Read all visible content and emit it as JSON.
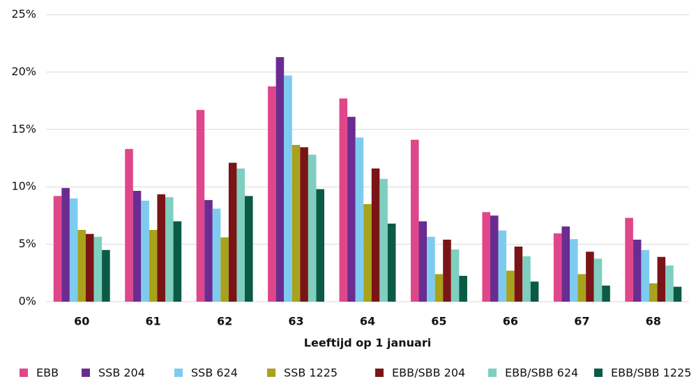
{
  "chart_data": {
    "type": "bar",
    "x_label": "Leeftijd op 1 januari",
    "categories": [
      "60",
      "61",
      "62",
      "63",
      "64",
      "65",
      "66",
      "67",
      "68"
    ],
    "series": [
      {
        "name": "EBB",
        "color": "#e0468a",
        "values": [
          9.2,
          13.3,
          16.7,
          18.75,
          17.7,
          14.1,
          7.8,
          5.95,
          7.3
        ]
      },
      {
        "name": "SSB 204",
        "color": "#6a2c91",
        "values": [
          9.9,
          9.65,
          8.85,
          21.3,
          16.1,
          7.0,
          7.5,
          6.55,
          5.4
        ]
      },
      {
        "name": "SSB 624",
        "color": "#7ecbf0",
        "values": [
          9.0,
          8.8,
          8.1,
          19.7,
          14.3,
          5.65,
          6.2,
          5.45,
          4.5
        ]
      },
      {
        "name": "SSB 1225",
        "color": "#a8a21c",
        "values": [
          6.25,
          6.25,
          5.6,
          13.65,
          8.5,
          2.4,
          2.7,
          2.4,
          1.6
        ]
      },
      {
        "name": "EBB/SBB 204",
        "color": "#7b1416",
        "values": [
          5.9,
          9.35,
          12.1,
          13.45,
          11.6,
          5.4,
          4.8,
          4.35,
          3.9
        ]
      },
      {
        "name": "EBB/SBB 624",
        "color": "#7fcfc0",
        "values": [
          5.65,
          9.1,
          11.6,
          12.8,
          10.7,
          4.55,
          3.95,
          3.75,
          3.15
        ]
      },
      {
        "name": "EBB/SBB 1225",
        "color": "#0a5a46",
        "values": [
          4.5,
          7.0,
          9.2,
          9.8,
          6.8,
          2.25,
          1.75,
          1.4,
          1.3
        ]
      }
    ],
    "ylim": [
      0,
      25
    ],
    "yticks": [
      {
        "value": 0,
        "label": "0%"
      },
      {
        "value": 5,
        "label": "5%"
      },
      {
        "value": 10,
        "label": "10%"
      },
      {
        "value": 15,
        "label": "15%"
      },
      {
        "value": 20,
        "label": "20%"
      },
      {
        "value": 25,
        "label": "25%"
      }
    ],
    "grid": true
  }
}
